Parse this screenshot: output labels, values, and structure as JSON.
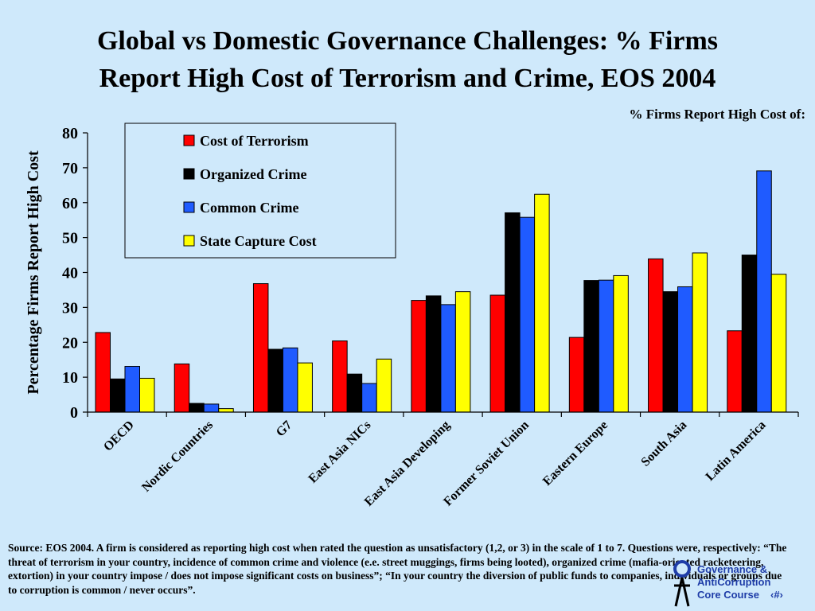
{
  "slide": {
    "title_line1": "Global vs Domestic Governance Challenges: % Firms",
    "title_line2": "Report High Cost of Terrorism and Crime, EOS 2004",
    "subtitle": "% Firms Report High Cost of:",
    "source": "Source:  EOS 2004. A firm is considered as reporting high cost when rated the question as unsatisfactory (1,2, or 3) in the scale of 1 to 7. Questions were, respectively:  “The threat of terrorism in your country, incidence of common crime and violence (e.e. street muggings, firms being looted), organized crime (mafia-oriented racketeering, extortion) in your country impose / does not impose significant costs on business”; “In your country the diversion of public funds to companies, individuals or groups due to corruption is common / never occurs”.",
    "logo_line1": "Governance &",
    "logo_line2": "AntiCorruption",
    "logo_line3": "Core Course",
    "slide_number": "‹#›"
  },
  "chart_data": {
    "type": "bar",
    "ylabel": "Percentage Firms Report High Cost",
    "xlabel": "",
    "ylim": [
      0,
      80
    ],
    "yticks": [
      0,
      10,
      20,
      30,
      40,
      50,
      60,
      70,
      80
    ],
    "legend_position": "top-left",
    "categories": [
      "OECD",
      "Nordic Countries",
      "G7",
      "East Asia NICs",
      "East Asia Developing",
      "Former Soviet Union",
      "Eastern Europe",
      "South Asia",
      "Latin America"
    ],
    "series": [
      {
        "name": "Cost of Terrorism",
        "color": "#ff0000",
        "values": [
          22.8,
          13.8,
          36.8,
          20.4,
          32.0,
          33.5,
          21.4,
          43.9,
          23.3
        ]
      },
      {
        "name": "Organized Crime",
        "color": "#000000",
        "values": [
          9.5,
          2.5,
          18.0,
          10.9,
          33.3,
          57.1,
          37.7,
          34.5,
          45.0
        ]
      },
      {
        "name": "Common Crime",
        "color": "#1f5bff",
        "values": [
          13.1,
          2.3,
          18.4,
          8.2,
          30.8,
          55.8,
          37.8,
          35.9,
          69.1
        ]
      },
      {
        "name": "State Capture Cost",
        "color": "#ffff00",
        "values": [
          9.7,
          1.0,
          14.1,
          15.2,
          34.5,
          62.4,
          39.1,
          45.6,
          39.5
        ]
      }
    ]
  }
}
